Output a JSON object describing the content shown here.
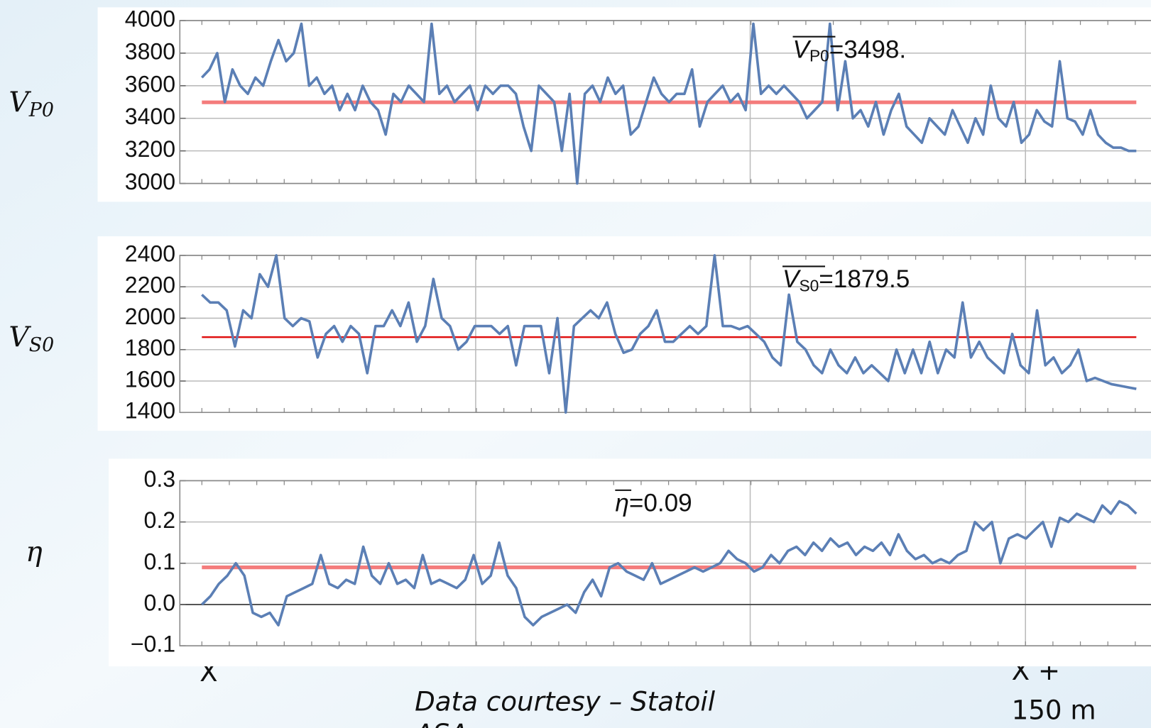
{
  "chart_data": [
    {
      "type": "line",
      "ylabel": "V",
      "ylabel_sub": "P0",
      "ylim": [
        3000,
        4000
      ],
      "yticks": [
        3000,
        3200,
        3400,
        3600,
        3800,
        4000
      ],
      "mean": 3498,
      "mean_symbol": "V",
      "mean_sub": "P0",
      "mean_label": "=3498.",
      "mean_color": "#f47c7c",
      "series": [
        {
          "color": "#5b7fb5",
          "values": [
            3650,
            3700,
            3800,
            3500,
            3700,
            3600,
            3550,
            3650,
            3600,
            3750,
            3880,
            3750,
            3800,
            3980,
            3600,
            3650,
            3550,
            3600,
            3450,
            3550,
            3450,
            3600,
            3500,
            3450,
            3300,
            3550,
            3500,
            3600,
            3550,
            3500,
            3980,
            3550,
            3600,
            3500,
            3550,
            3600,
            3450,
            3600,
            3550,
            3600,
            3600,
            3550,
            3350,
            3200,
            3600,
            3550,
            3500,
            3200,
            3550,
            3000,
            3550,
            3600,
            3500,
            3650,
            3550,
            3600,
            3300,
            3350,
            3500,
            3650,
            3550,
            3500,
            3550,
            3550,
            3700,
            3350,
            3500,
            3550,
            3600,
            3500,
            3550,
            3450,
            3980,
            3550,
            3600,
            3550,
            3600,
            3550,
            3500,
            3400,
            3450,
            3500,
            3980,
            3450,
            3750,
            3400,
            3450,
            3350,
            3500,
            3300,
            3450,
            3550,
            3350,
            3300,
            3250,
            3400,
            3350,
            3300,
            3450,
            3350,
            3250,
            3400,
            3300,
            3600,
            3400,
            3350,
            3500,
            3250,
            3300,
            3450,
            3380,
            3350,
            3750,
            3400,
            3380,
            3300,
            3450,
            3300,
            3250,
            3220,
            3220,
            3200,
            3200
          ]
        }
      ],
      "grid": true
    },
    {
      "type": "line",
      "ylabel": "V",
      "ylabel_sub": "S0",
      "ylim": [
        1400,
        2400
      ],
      "yticks": [
        1400,
        1600,
        1800,
        2000,
        2200,
        2400
      ],
      "mean": 1879.5,
      "mean_symbol": "V",
      "mean_sub": "S0",
      "mean_label": "=1879.5",
      "mean_color": "#e01010",
      "series": [
        {
          "color": "#5b7fb5",
          "values": [
            2150,
            2100,
            2100,
            2050,
            1820,
            2050,
            2000,
            2280,
            2200,
            2400,
            2000,
            1950,
            2000,
            1980,
            1750,
            1900,
            1950,
            1850,
            1950,
            1900,
            1650,
            1950,
            1950,
            2050,
            1950,
            2100,
            1850,
            1950,
            2250,
            2000,
            1950,
            1800,
            1850,
            1950,
            1950,
            1950,
            1900,
            1950,
            1700,
            1950,
            1950,
            1950,
            1650,
            2000,
            1400,
            1950,
            2000,
            2050,
            2000,
            2100,
            1900,
            1780,
            1800,
            1900,
            1950,
            2050,
            1850,
            1850,
            1900,
            1950,
            1900,
            1950,
            2400,
            1950,
            1950,
            1930,
            1950,
            1900,
            1850,
            1750,
            1700,
            2150,
            1850,
            1800,
            1700,
            1650,
            1800,
            1700,
            1650,
            1750,
            1650,
            1700,
            1650,
            1600,
            1800,
            1650,
            1800,
            1650,
            1850,
            1650,
            1800,
            1750,
            2100,
            1750,
            1850,
            1750,
            1700,
            1650,
            1900,
            1700,
            1650,
            2050,
            1700,
            1750,
            1650,
            1700,
            1800,
            1600,
            1620,
            1600,
            1580,
            1570,
            1560,
            1550
          ]
        }
      ],
      "grid": true
    },
    {
      "type": "line",
      "ylabel": "η",
      "ylim": [
        -0.1,
        0.3
      ],
      "yticks": [
        {
          "value": -0.1,
          "label": "−0.1"
        },
        {
          "value": 0,
          "label": "0.0"
        },
        0.1,
        0.2,
        0.3
      ],
      "mean": 0.09,
      "mean_symbol": "η",
      "mean_label": "=0.09",
      "mean_color": "#f47c7c",
      "series": [
        {
          "color": "#5b7fb5",
          "values": [
            0.0,
            0.02,
            0.05,
            0.07,
            0.1,
            0.07,
            -0.02,
            -0.03,
            -0.02,
            -0.05,
            0.02,
            0.03,
            0.04,
            0.05,
            0.12,
            0.05,
            0.04,
            0.06,
            0.05,
            0.14,
            0.07,
            0.05,
            0.1,
            0.05,
            0.06,
            0.04,
            0.12,
            0.05,
            0.06,
            0.05,
            0.04,
            0.06,
            0.12,
            0.05,
            0.07,
            0.15,
            0.07,
            0.04,
            -0.03,
            -0.05,
            -0.03,
            -0.02,
            -0.01,
            0.0,
            -0.02,
            0.03,
            0.06,
            0.02,
            0.09,
            0.1,
            0.08,
            0.07,
            0.06,
            0.1,
            0.05,
            0.06,
            0.07,
            0.08,
            0.09,
            0.08,
            0.09,
            0.1,
            0.13,
            0.11,
            0.1,
            0.08,
            0.09,
            0.12,
            0.1,
            0.13,
            0.14,
            0.12,
            0.15,
            0.13,
            0.16,
            0.14,
            0.15,
            0.12,
            0.14,
            0.13,
            0.15,
            0.12,
            0.17,
            0.13,
            0.11,
            0.12,
            0.1,
            0.11,
            0.1,
            0.12,
            0.13,
            0.2,
            0.18,
            0.2,
            0.1,
            0.16,
            0.17,
            0.16,
            0.18,
            0.2,
            0.14,
            0.21,
            0.2,
            0.22,
            0.21,
            0.2,
            0.24,
            0.22,
            0.25,
            0.24,
            0.22
          ]
        }
      ],
      "grid": true
    }
  ],
  "x_start_label": "X",
  "x_end_label": [
    "X +",
    "150 m"
  ],
  "credit": [
    "Data courtesy – Statoil",
    "ASA"
  ]
}
